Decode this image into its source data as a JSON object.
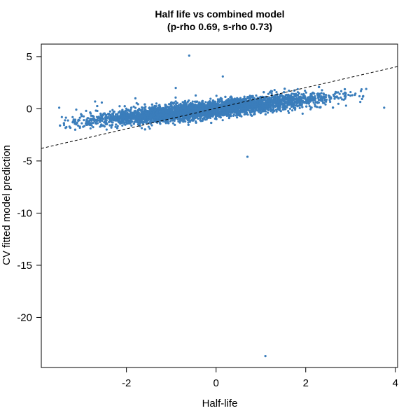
{
  "chart_data": {
    "type": "scatter",
    "title_line1": "Half life vs combined model",
    "title_line2": "(p-rho 0.69, s-rho 0.73)",
    "xlabel": "Half-life",
    "ylabel": "CV fitted model prediction",
    "xlim": [
      -3.9,
      4.05
    ],
    "ylim": [
      -24.8,
      6.2
    ],
    "x_ticks": [
      -2,
      0,
      2,
      4
    ],
    "x_tick_labels": [
      "-2",
      "0",
      "2",
      "4"
    ],
    "y_ticks": [
      5,
      0,
      -5,
      -10,
      -15,
      -20
    ],
    "y_tick_labels": [
      "5",
      "0",
      "-5",
      "-10",
      "-15",
      "-20"
    ],
    "point_color": "#3a7dbb",
    "grid": false,
    "reference_line": {
      "style": "dashed",
      "color": "#000000",
      "points": [
        [
          -3.9,
          -3.8
        ],
        [
          4.05,
          4.05
        ]
      ]
    },
    "bulk_trend": {
      "slope": 0.42,
      "intercept": 0.0,
      "x_range": [
        -2.8,
        2.4
      ],
      "spread": 0.7,
      "n": 5000
    },
    "points": [
      [
        -0.6,
        5.1
      ],
      [
        0.15,
        3.1
      ],
      [
        1.1,
        -23.7
      ],
      [
        0.7,
        -4.6
      ],
      [
        3.75,
        0.1
      ],
      [
        3.35,
        1.9
      ],
      [
        3.0,
        1.6
      ],
      [
        -3.5,
        0.1
      ],
      [
        -3.35,
        -0.85
      ],
      [
        -3.2,
        -1.3
      ],
      [
        -3.0,
        -0.6
      ],
      [
        -2.9,
        -0.2
      ],
      [
        -2.7,
        0.7
      ],
      [
        -2.55,
        0.6
      ],
      [
        -1.8,
        1.0
      ],
      [
        -0.9,
        2.0
      ],
      [
        3.2,
        1.2
      ],
      [
        2.9,
        0.3
      ],
      [
        -3.05,
        -1.1
      ],
      [
        -2.85,
        -1.5
      ]
    ]
  }
}
